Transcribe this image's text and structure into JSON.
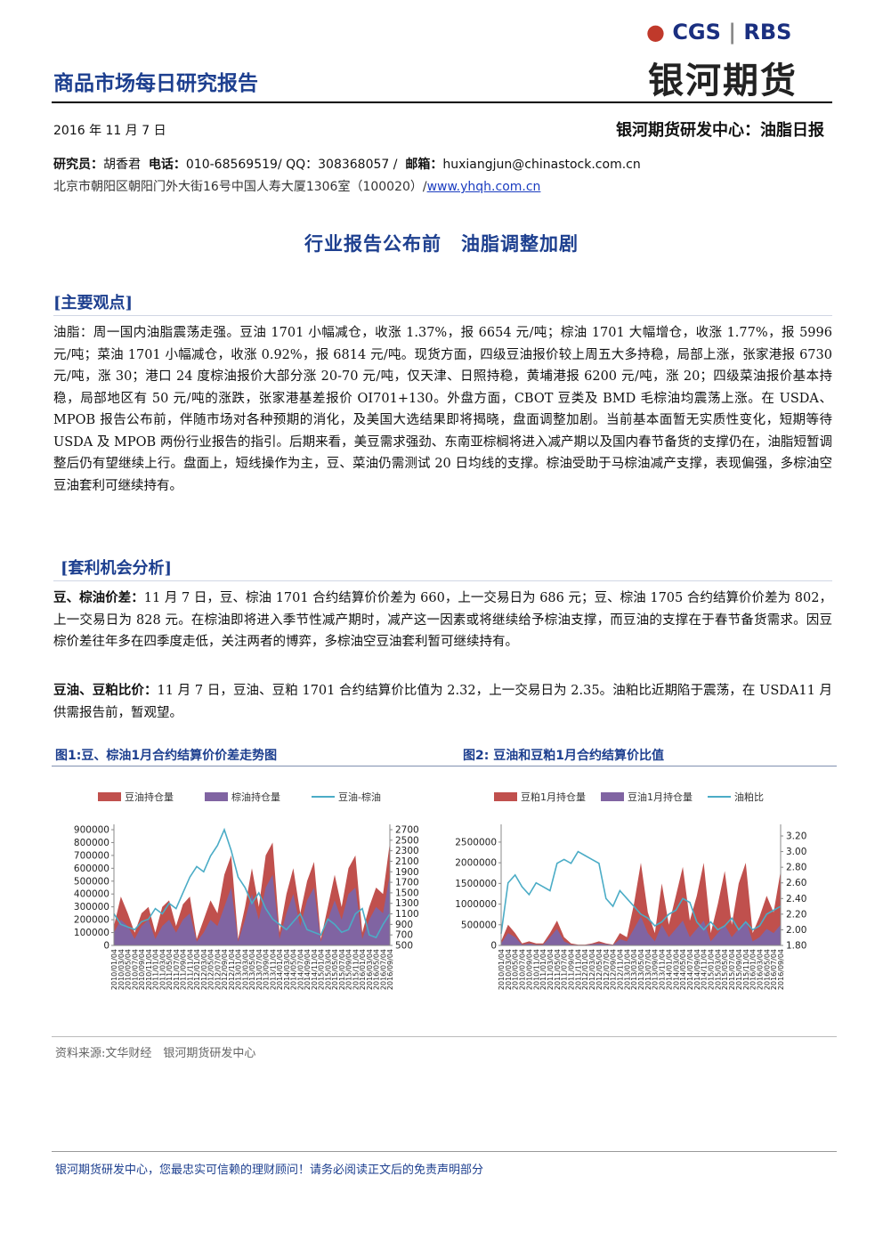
{
  "header": {
    "logo_cgs": "CGS",
    "logo_rbs": "RBS",
    "logo_name": "银河期货",
    "title": "商品市场每日研究报告",
    "date": "2016 年 11 月 7 日",
    "department": "银河期货研发中心：油脂日报"
  },
  "contact": {
    "researcher_label": "研究员：",
    "researcher": "胡香君",
    "phone_label": "电话：",
    "phone": "010-68569519/ QQ：308368057 /",
    "email_label": "邮箱：",
    "email": "huxiangjun@chinastock.com.cn",
    "address": "北京市朝阳区朝阳门外大街16号中国人寿大厦1306室（100020）/",
    "website": "www.yhqh.com.cn"
  },
  "headline": "行业报告公布前　油脂调整加剧",
  "main_view": {
    "heading": "[主要观点]",
    "text": "油脂：周一国内油脂震荡走强。豆油 1701 小幅减仓，收涨 1.37%，报 6654 元/吨；棕油 1701 大幅增仓，收涨 1.77%，报 5996 元/吨；菜油 1701 小幅减仓，收涨 0.92%，报 6814 元/吨。现货方面，四级豆油报价较上周五大多持稳，局部上涨，张家港报 6730 元/吨，涨 30；港口 24 度棕油报价大部分涨 20-70 元/吨，仅天津、日照持稳，黄埔港报 6200 元/吨，涨 20；四级菜油报价基本持稳，局部地区有 50 元/吨的涨跌，张家港基差报价 OI701+130。外盘方面，CBOT 豆类及 BMD 毛棕油均震荡上涨。在 USDA、MPOB 报告公布前，伴随市场对各种预期的消化，及美国大选结果即将揭晓，盘面调整加剧。当前基本面暂无实质性变化，短期等待 USDA 及 MPOB 两份行业报告的指引。后期来看，美豆需求强劲、东南亚棕榈将进入减产期以及国内春节备货的支撑仍在，油脂短暂调整后仍有望继续上行。盘面上，短线操作为主，豆、菜油仍需测试 20 日均线的支撑。棕油受助于马棕油减产支撑，表现偏强，多棕油空豆油套利可继续持有。"
  },
  "arbitrage": {
    "heading": "[套利机会分析]",
    "items": [
      {
        "lead": "豆、棕油价差：",
        "text": "11 月 7 日，豆、棕油 1701 合约结算价价差为 660，上一交易日为 686 元；豆、棕油 1705 合约结算价价差为 802，上一交易日为 828 元。在棕油即将进入季节性减产期时，减产这一因素或将继续给予棕油支撑，而豆油的支撑在于春节备货需求。因豆棕价差往年多在四季度走低，关注两者的博弈，多棕油空豆油套利暂可继续持有。"
      },
      {
        "lead": "豆油、豆粕比价：",
        "text": "11 月 7 日，豆油、豆粕 1701 合约结算价比值为 2.32，上一交易日为 2.35。油粕比近期陷于震荡，在 USDA11 月供需报告前，暂观望。"
      }
    ]
  },
  "chart_data": [
    {
      "type": "area",
      "title": "图1:豆、棕油1月合约结算价价差走势图",
      "categories": [
        "2010/01/04",
        "2010/03/04",
        "2010/05/04",
        "2010/07/04",
        "2010/09/04",
        "2010/11/04",
        "2011/01/04",
        "2011/03/04",
        "2011/05/04",
        "2011/07/04",
        "2011/09/04",
        "2011/11/04",
        "2012/01/04",
        "2012/03/04",
        "2012/05/04",
        "2012/07/04",
        "2012/09/04",
        "2012/11/04",
        "2013/01/04",
        "2013/03/04",
        "2013/05/04",
        "2013/07/04",
        "2013/09/04",
        "2013/11/04",
        "2014/01/04",
        "2014/03/04",
        "2014/05/04",
        "2014/07/04",
        "2014/09/04",
        "2014/11/04",
        "2015/01/04",
        "2015/03/04",
        "2015/05/04",
        "2015/07/04",
        "2015/09/04",
        "2015/11/04",
        "2016/01/04",
        "2016/03/04",
        "2016/05/04",
        "2016/07/04",
        "2016/09/04"
      ],
      "series": [
        {
          "name": "豆油持仓量",
          "color": "#c0504d",
          "values": [
            150000,
            380000,
            250000,
            100000,
            250000,
            300000,
            100000,
            300000,
            350000,
            150000,
            320000,
            380000,
            50000,
            200000,
            350000,
            250000,
            550000,
            700000,
            50000,
            300000,
            600000,
            300000,
            700000,
            800000,
            100000,
            400000,
            600000,
            250000,
            500000,
            650000,
            50000,
            300000,
            550000,
            300000,
            600000,
            700000,
            100000,
            300000,
            450000,
            400000,
            800000
          ]
        },
        {
          "name": "棕油持仓量",
          "color": "#8064a2",
          "values": [
            100000,
            200000,
            150000,
            50000,
            150000,
            200000,
            50000,
            150000,
            200000,
            100000,
            200000,
            250000,
            30000,
            100000,
            200000,
            150000,
            300000,
            450000,
            30000,
            200000,
            400000,
            200000,
            450000,
            550000,
            50000,
            250000,
            400000,
            150000,
            350000,
            450000,
            30000,
            200000,
            350000,
            200000,
            400000,
            450000,
            50000,
            200000,
            300000,
            250000,
            550000
          ]
        },
        {
          "name": "豆油-棕油",
          "color": "#4bacc6",
          "type": "line",
          "axis": "y2",
          "values": [
            1100,
            900,
            850,
            800,
            950,
            1000,
            1200,
            1100,
            1300,
            1200,
            1500,
            1800,
            2000,
            1900,
            2200,
            2400,
            2700,
            2300,
            1800,
            1600,
            1300,
            1500,
            1200,
            1000,
            900,
            800,
            950,
            1100,
            800,
            750,
            700,
            1000,
            900,
            750,
            800,
            1100,
            1200,
            700,
            650,
            900,
            1100
          ]
        }
      ],
      "ylim": [
        0,
        900000
      ],
      "yticks": [
        0,
        100000,
        200000,
        300000,
        400000,
        500000,
        600000,
        700000,
        800000,
        900000
      ],
      "y2lim": [
        500,
        2700
      ],
      "y2ticks": [
        500,
        700,
        900,
        1100,
        1300,
        1500,
        1700,
        1900,
        2100,
        2300,
        2500,
        2700
      ]
    },
    {
      "type": "area",
      "title": "图2: 豆油和豆粕1月合约结算价比值",
      "categories": [
        "2010/01/04",
        "2010/03/04",
        "2010/05/04",
        "2010/07/04",
        "2010/09/04",
        "2010/11/04",
        "2011/01/04",
        "2011/03/04",
        "2011/05/04",
        "2011/07/04",
        "2011/09/04",
        "2011/11/04",
        "2012/01/04",
        "2012/03/04",
        "2012/05/04",
        "2012/07/04",
        "2012/09/04",
        "2012/11/04",
        "2013/01/04",
        "2013/03/04",
        "2013/05/04",
        "2013/07/04",
        "2013/09/04",
        "2013/11/04",
        "2014/01/04",
        "2014/03/04",
        "2014/05/04",
        "2014/07/04",
        "2014/09/04",
        "2014/11/04",
        "2015/01/04",
        "2015/03/04",
        "2015/05/04",
        "2015/07/04",
        "2015/09/04",
        "2015/11/04",
        "2016/01/04",
        "2016/03/04",
        "2016/05/04",
        "2016/07/04",
        "2016/09/04"
      ],
      "series": [
        {
          "name": "豆粕1月持仓量",
          "color": "#c0504d",
          "values": [
            100000,
            500000,
            300000,
            50000,
            100000,
            50000,
            50000,
            300000,
            600000,
            200000,
            50000,
            20000,
            20000,
            50000,
            100000,
            50000,
            20000,
            300000,
            200000,
            1000000,
            2000000,
            800000,
            300000,
            1500000,
            500000,
            1200000,
            1900000,
            600000,
            1200000,
            2000000,
            300000,
            1000000,
            1800000,
            500000,
            1500000,
            2000000,
            300000,
            700000,
            1200000,
            800000,
            1800000
          ]
        },
        {
          "name": "豆油1月持仓量",
          "color": "#8064a2",
          "values": [
            50000,
            300000,
            200000,
            20000,
            50000,
            20000,
            20000,
            200000,
            400000,
            100000,
            20000,
            10000,
            10000,
            30000,
            50000,
            30000,
            10000,
            150000,
            100000,
            400000,
            700000,
            300000,
            100000,
            500000,
            200000,
            400000,
            600000,
            200000,
            400000,
            600000,
            100000,
            300000,
            500000,
            200000,
            400000,
            600000,
            100000,
            200000,
            400000,
            300000,
            500000
          ]
        },
        {
          "name": "油粕比",
          "color": "#4bacc6",
          "type": "line",
          "axis": "y2",
          "values": [
            1.95,
            2.6,
            2.7,
            2.55,
            2.45,
            2.6,
            2.55,
            2.5,
            2.85,
            2.9,
            2.85,
            3.0,
            2.95,
            2.9,
            2.85,
            2.4,
            2.3,
            2.5,
            2.4,
            2.3,
            2.2,
            2.15,
            2.05,
            2.1,
            2.2,
            2.25,
            2.4,
            2.35,
            2.1,
            2.0,
            2.1,
            2.0,
            2.05,
            2.15,
            2.0,
            2.1,
            2.0,
            2.05,
            2.2,
            2.25,
            2.3
          ]
        }
      ],
      "ylim": [
        0,
        2800000
      ],
      "yticks": [
        0,
        500000,
        1000000,
        1500000,
        2000000,
        2500000
      ],
      "y2lim": [
        1.8,
        3.28
      ],
      "y2ticks": [
        {
          "value": 1.8,
          "label": "1.80"
        },
        {
          "value": 2.0,
          "label": "2.00"
        },
        {
          "value": 2.2,
          "label": "2.20"
        },
        {
          "value": 2.4,
          "label": "2.40"
        },
        {
          "value": 2.6,
          "label": "2.60"
        },
        {
          "value": 2.8,
          "label": "2.80"
        },
        {
          "value": 3.0,
          "label": "3.00"
        },
        {
          "value": 3.2,
          "label": "3.20"
        }
      ]
    }
  ],
  "source": "资料来源:文华财经　银河期货研发中心",
  "footer": "银河期货研发中心，您最忠实可信赖的理财顾问！请务必阅读正文后的免责声明部分"
}
